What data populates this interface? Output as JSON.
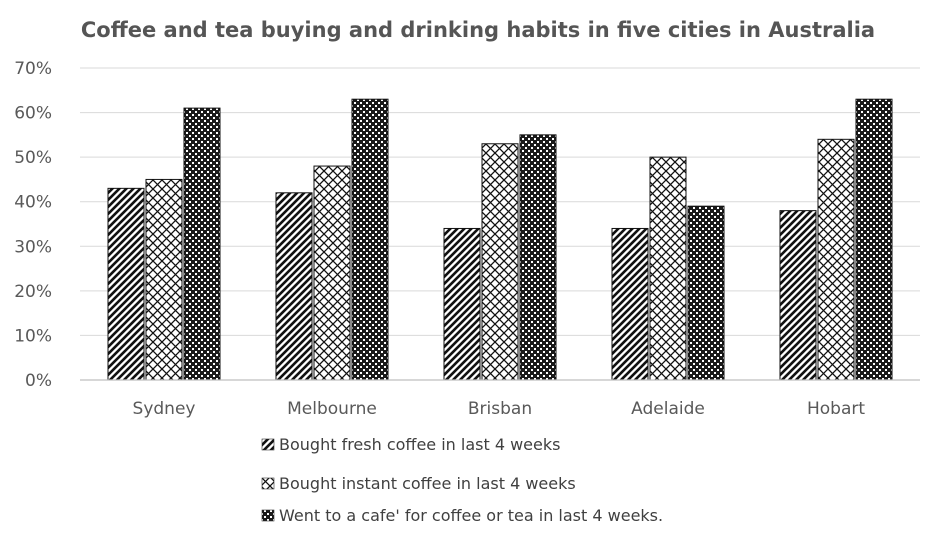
{
  "chart_data": {
    "type": "bar",
    "title": "Coffee and tea buying and drinking habits in five cities in Australia",
    "categories": [
      "Sydney",
      "Melbourne",
      "Brisban",
      "Adelaide",
      "Hobart"
    ],
    "series": [
      {
        "name": "Bought fresh coffee in last 4 weeks",
        "values": [
          43,
          42,
          34,
          34,
          38
        ],
        "pattern": "diagonal-hatch"
      },
      {
        "name": "Bought instant coffee in last 4 weeks",
        "values": [
          45,
          48,
          53,
          50,
          54
        ],
        "pattern": "cross-hatch"
      },
      {
        "name": "Went to a cafe' for coffee or tea in last 4 weeks.",
        "values": [
          61,
          63,
          55,
          39,
          63
        ],
        "pattern": "dense-check"
      }
    ],
    "ylim": [
      0,
      70
    ],
    "yticks": [
      "0%",
      "10%",
      "20%",
      "30%",
      "40%",
      "50%",
      "60%",
      "70%"
    ],
    "grid": true,
    "legend_position": "bottom"
  }
}
